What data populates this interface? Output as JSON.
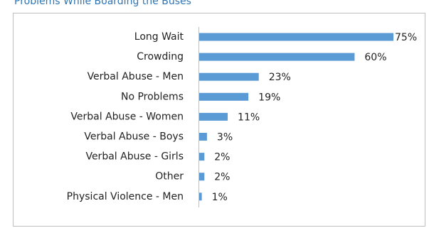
{
  "chart_data": {
    "type": "bar",
    "orientation": "horizontal",
    "title": "Problems While Boarding the Buses",
    "categories": [
      "Long Wait",
      "Crowding",
      "Verbal Abuse - Men",
      "No Problems",
      "Verbal Abuse - Women",
      "Verbal Abuse - Boys",
      "Verbal Abuse - Girls",
      "Other",
      "Physical Violence - Men"
    ],
    "values": [
      75,
      60,
      23,
      19,
      11,
      3,
      2,
      2,
      1
    ],
    "value_labels": [
      "75%",
      "60%",
      "23%",
      "19%",
      "11%",
      "3%",
      "2%",
      "2%",
      "1%"
    ],
    "color": "#5b9bd5"
  }
}
